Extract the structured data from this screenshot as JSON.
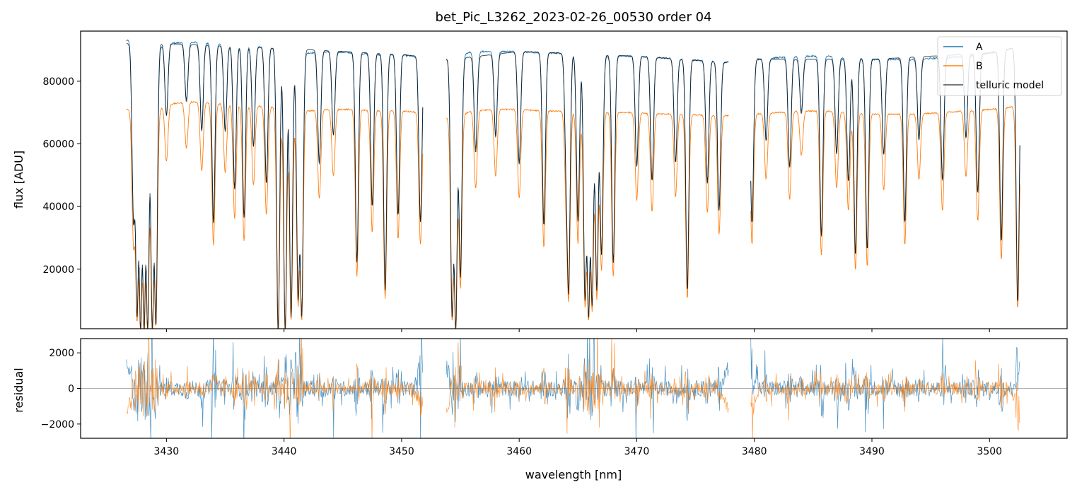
{
  "chart_data": [
    {
      "type": "line",
      "title": "bet_Pic_L3262_2023-02-26_00530  order 04",
      "xlabel": "",
      "ylabel": "flux [ADU]",
      "xlim": [
        3422.7,
        3506.6
      ],
      "ylim": [
        1000,
        96000
      ],
      "yticks": [
        20000,
        40000,
        60000,
        80000
      ],
      "xticks": [
        3430,
        3440,
        3450,
        3460,
        3470,
        3480,
        3490,
        3500
      ],
      "xtick_labels_shown": false,
      "legend_position": "top-right",
      "legend": [
        "A",
        "B",
        "telluric model"
      ],
      "segments": [
        [
          3426.6,
          3451.8
        ],
        [
          3453.8,
          3477.8
        ],
        [
          3479.7,
          3502.6
        ]
      ],
      "series": [
        {
          "name": "A",
          "color": "#1f77b4",
          "x": [
            3427.0,
            3428.0,
            3429.0,
            3430.0,
            3432.0,
            3434.0,
            3436.0,
            3438.0,
            3440.0,
            3442.0,
            3444.0,
            3446.0,
            3448.0,
            3450.0,
            3451.5,
            3454.2,
            3456.0,
            3458.0,
            3460.0,
            3462.0,
            3464.0,
            3466.0,
            3468.0,
            3470.0,
            3472.0,
            3474.0,
            3476.0,
            3477.5,
            3480.0,
            3482.0,
            3484.0,
            3486.0,
            3488.0,
            3490.0,
            3492.0,
            3494.0,
            3496.0,
            3498.0,
            3500.0,
            3502.5
          ],
          "values": [
            93000,
            88000,
            90000,
            92000,
            92500,
            92000,
            91500,
            91000,
            90500,
            89000,
            89500,
            89000,
            88500,
            88500,
            87500,
            87000,
            89500,
            89500,
            89500,
            89000,
            89000,
            88000,
            88000,
            88000,
            87500,
            87000,
            86500,
            86000,
            87000,
            87500,
            88000,
            88000,
            87500,
            87000,
            87000,
            87000,
            87500,
            88000,
            89000,
            91000
          ]
        },
        {
          "name": "B",
          "color": "#ff7f0e",
          "x": [
            3427.0,
            3428.0,
            3429.0,
            3430.0,
            3432.0,
            3434.0,
            3436.0,
            3438.0,
            3440.0,
            3442.0,
            3444.0,
            3446.0,
            3448.0,
            3450.0,
            3451.5,
            3454.2,
            3456.0,
            3458.0,
            3460.0,
            3462.0,
            3464.0,
            3466.0,
            3468.0,
            3470.0,
            3472.0,
            3474.0,
            3476.0,
            3477.5,
            3480.0,
            3482.0,
            3484.0,
            3486.0,
            3488.0,
            3490.0,
            3492.0,
            3494.0,
            3496.0,
            3498.0,
            3500.0,
            3502.5
          ],
          "values": [
            71000,
            67000,
            70000,
            72500,
            73500,
            73000,
            72500,
            72000,
            71500,
            70500,
            71000,
            71000,
            70500,
            70500,
            70000,
            68000,
            70500,
            71000,
            71000,
            70500,
            70500,
            70000,
            70000,
            70000,
            69500,
            69500,
            69000,
            69000,
            69500,
            70000,
            70500,
            70500,
            70000,
            69500,
            69500,
            69500,
            70000,
            70500,
            71000,
            72000
          ]
        },
        {
          "name": "telluric model",
          "color": "#000000",
          "alpha": 0.7,
          "x": [
            3427.0,
            3430.0,
            3440.0,
            3450.0,
            3454.2,
            3460.0,
            3470.0,
            3477.5,
            3480.0,
            3490.0,
            3500.0,
            3502.5
          ],
          "values": [
            92000,
            92000,
            90500,
            88500,
            87000,
            89500,
            88000,
            86000,
            87000,
            87000,
            89000,
            91000
          ]
        }
      ],
      "absorption_lines": [
        {
          "x": 3427.2,
          "depth": 0.6
        },
        {
          "x": 3427.5,
          "depth": 0.95
        },
        {
          "x": 3427.8,
          "depth": 1.0
        },
        {
          "x": 3428.1,
          "depth": 1.0
        },
        {
          "x": 3428.4,
          "depth": 1.0
        },
        {
          "x": 3428.8,
          "depth": 1.0
        },
        {
          "x": 3429.1,
          "depth": 0.98
        },
        {
          "x": 3430.0,
          "depth": 0.25
        },
        {
          "x": 3431.7,
          "depth": 0.2
        },
        {
          "x": 3433.0,
          "depth": 0.3
        },
        {
          "x": 3434.0,
          "depth": 0.62
        },
        {
          "x": 3435.0,
          "depth": 0.3
        },
        {
          "x": 3435.8,
          "depth": 0.5
        },
        {
          "x": 3436.6,
          "depth": 0.6
        },
        {
          "x": 3437.4,
          "depth": 0.35
        },
        {
          "x": 3438.5,
          "depth": 0.48
        },
        {
          "x": 3439.5,
          "depth": 1.0
        },
        {
          "x": 3440.1,
          "depth": 1.0
        },
        {
          "x": 3440.6,
          "depth": 0.95
        },
        {
          "x": 3441.2,
          "depth": 0.88
        },
        {
          "x": 3441.5,
          "depth": 0.95
        },
        {
          "x": 3443.0,
          "depth": 0.4
        },
        {
          "x": 3444.2,
          "depth": 0.3
        },
        {
          "x": 3446.2,
          "depth": 0.75
        },
        {
          "x": 3447.5,
          "depth": 0.55
        },
        {
          "x": 3448.6,
          "depth": 0.85
        },
        {
          "x": 3449.7,
          "depth": 0.58
        },
        {
          "x": 3451.6,
          "depth": 0.6
        },
        {
          "x": 3454.3,
          "depth": 0.95
        },
        {
          "x": 3454.6,
          "depth": 1.0
        },
        {
          "x": 3455.0,
          "depth": 0.8
        },
        {
          "x": 3456.3,
          "depth": 0.35
        },
        {
          "x": 3458.0,
          "depth": 0.3
        },
        {
          "x": 3460.0,
          "depth": 0.4
        },
        {
          "x": 3462.1,
          "depth": 0.62
        },
        {
          "x": 3464.0,
          "depth": 0.35
        },
        {
          "x": 3464.2,
          "depth": 0.85
        },
        {
          "x": 3465.0,
          "depth": 0.6
        },
        {
          "x": 3465.6,
          "depth": 0.88
        },
        {
          "x": 3465.9,
          "depth": 0.95
        },
        {
          "x": 3466.2,
          "depth": 0.9
        },
        {
          "x": 3466.6,
          "depth": 0.85
        },
        {
          "x": 3467.0,
          "depth": 0.72
        },
        {
          "x": 3468.0,
          "depth": 0.75
        },
        {
          "x": 3470.0,
          "depth": 0.4
        },
        {
          "x": 3471.3,
          "depth": 0.45
        },
        {
          "x": 3473.3,
          "depth": 0.38
        },
        {
          "x": 3474.3,
          "depth": 0.85
        },
        {
          "x": 3476.0,
          "depth": 0.45
        },
        {
          "x": 3477.0,
          "depth": 0.55
        },
        {
          "x": 3479.8,
          "depth": 0.6
        },
        {
          "x": 3481.0,
          "depth": 0.3
        },
        {
          "x": 3483.0,
          "depth": 0.4
        },
        {
          "x": 3484.0,
          "depth": 0.2
        },
        {
          "x": 3485.7,
          "depth": 0.65
        },
        {
          "x": 3487.0,
          "depth": 0.35
        },
        {
          "x": 3488.0,
          "depth": 0.45
        },
        {
          "x": 3488.6,
          "depth": 0.72
        },
        {
          "x": 3489.6,
          "depth": 0.7
        },
        {
          "x": 3491.0,
          "depth": 0.35
        },
        {
          "x": 3492.8,
          "depth": 0.6
        },
        {
          "x": 3494.0,
          "depth": 0.3
        },
        {
          "x": 3496.0,
          "depth": 0.45
        },
        {
          "x": 3498.0,
          "depth": 0.3
        },
        {
          "x": 3499.0,
          "depth": 0.5
        },
        {
          "x": 3501.0,
          "depth": 0.68
        },
        {
          "x": 3502.4,
          "depth": 0.9
        }
      ]
    },
    {
      "type": "line",
      "title": "",
      "xlabel": "wavelength [nm]",
      "ylabel": "residual",
      "xlim": [
        3422.7,
        3506.6
      ],
      "ylim": [
        -2800,
        2800
      ],
      "yticks": [
        -2000,
        0,
        2000
      ],
      "ytick_labels": [
        "−2000",
        "0",
        "2000"
      ],
      "xticks": [
        3430,
        3440,
        3450,
        3460,
        3470,
        3480,
        3490,
        3500
      ],
      "xtick_labels": [
        "3430",
        "3440",
        "3450",
        "3460",
        "3470",
        "3480",
        "3490",
        "3500"
      ],
      "zero_line": true,
      "series": [
        {
          "name": "A",
          "color": "#1f77b4",
          "alpha": 0.8,
          "typical_amplitude": 450
        },
        {
          "name": "B",
          "color": "#ff7f0e",
          "alpha": 0.8,
          "typical_amplitude": 350
        }
      ]
    }
  ]
}
